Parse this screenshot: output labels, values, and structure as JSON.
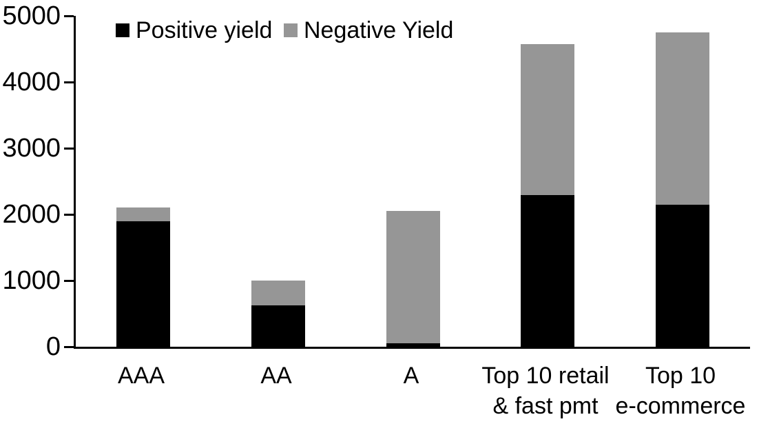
{
  "chart_data": {
    "type": "bar",
    "stacked": true,
    "title": "",
    "xlabel": "",
    "ylabel": "",
    "categories": [
      "AAA",
      "AA",
      "A",
      "Top 10 retail & fast pmt",
      "Top 10 e-commerce"
    ],
    "category_lines": [
      [
        "AAA"
      ],
      [
        "AA"
      ],
      [
        "A"
      ],
      [
        "Top 10 retail",
        "& fast pmt"
      ],
      [
        "Top 10",
        "e-commerce"
      ]
    ],
    "series": [
      {
        "name": "Positive yield",
        "color": "#000000",
        "values": [
          1900,
          630,
          50,
          2290,
          2150
        ]
      },
      {
        "name": "Negative Yield",
        "color": "#969696",
        "values": [
          210,
          370,
          2000,
          2280,
          2600
        ]
      }
    ],
    "ylim": [
      0,
      5000
    ],
    "yticks": [
      0,
      1000,
      2000,
      3000,
      4000,
      5000
    ],
    "legend_position": "top-left-inside",
    "grid": false,
    "background_color": "#ffffff",
    "axis_color": "#000000"
  }
}
